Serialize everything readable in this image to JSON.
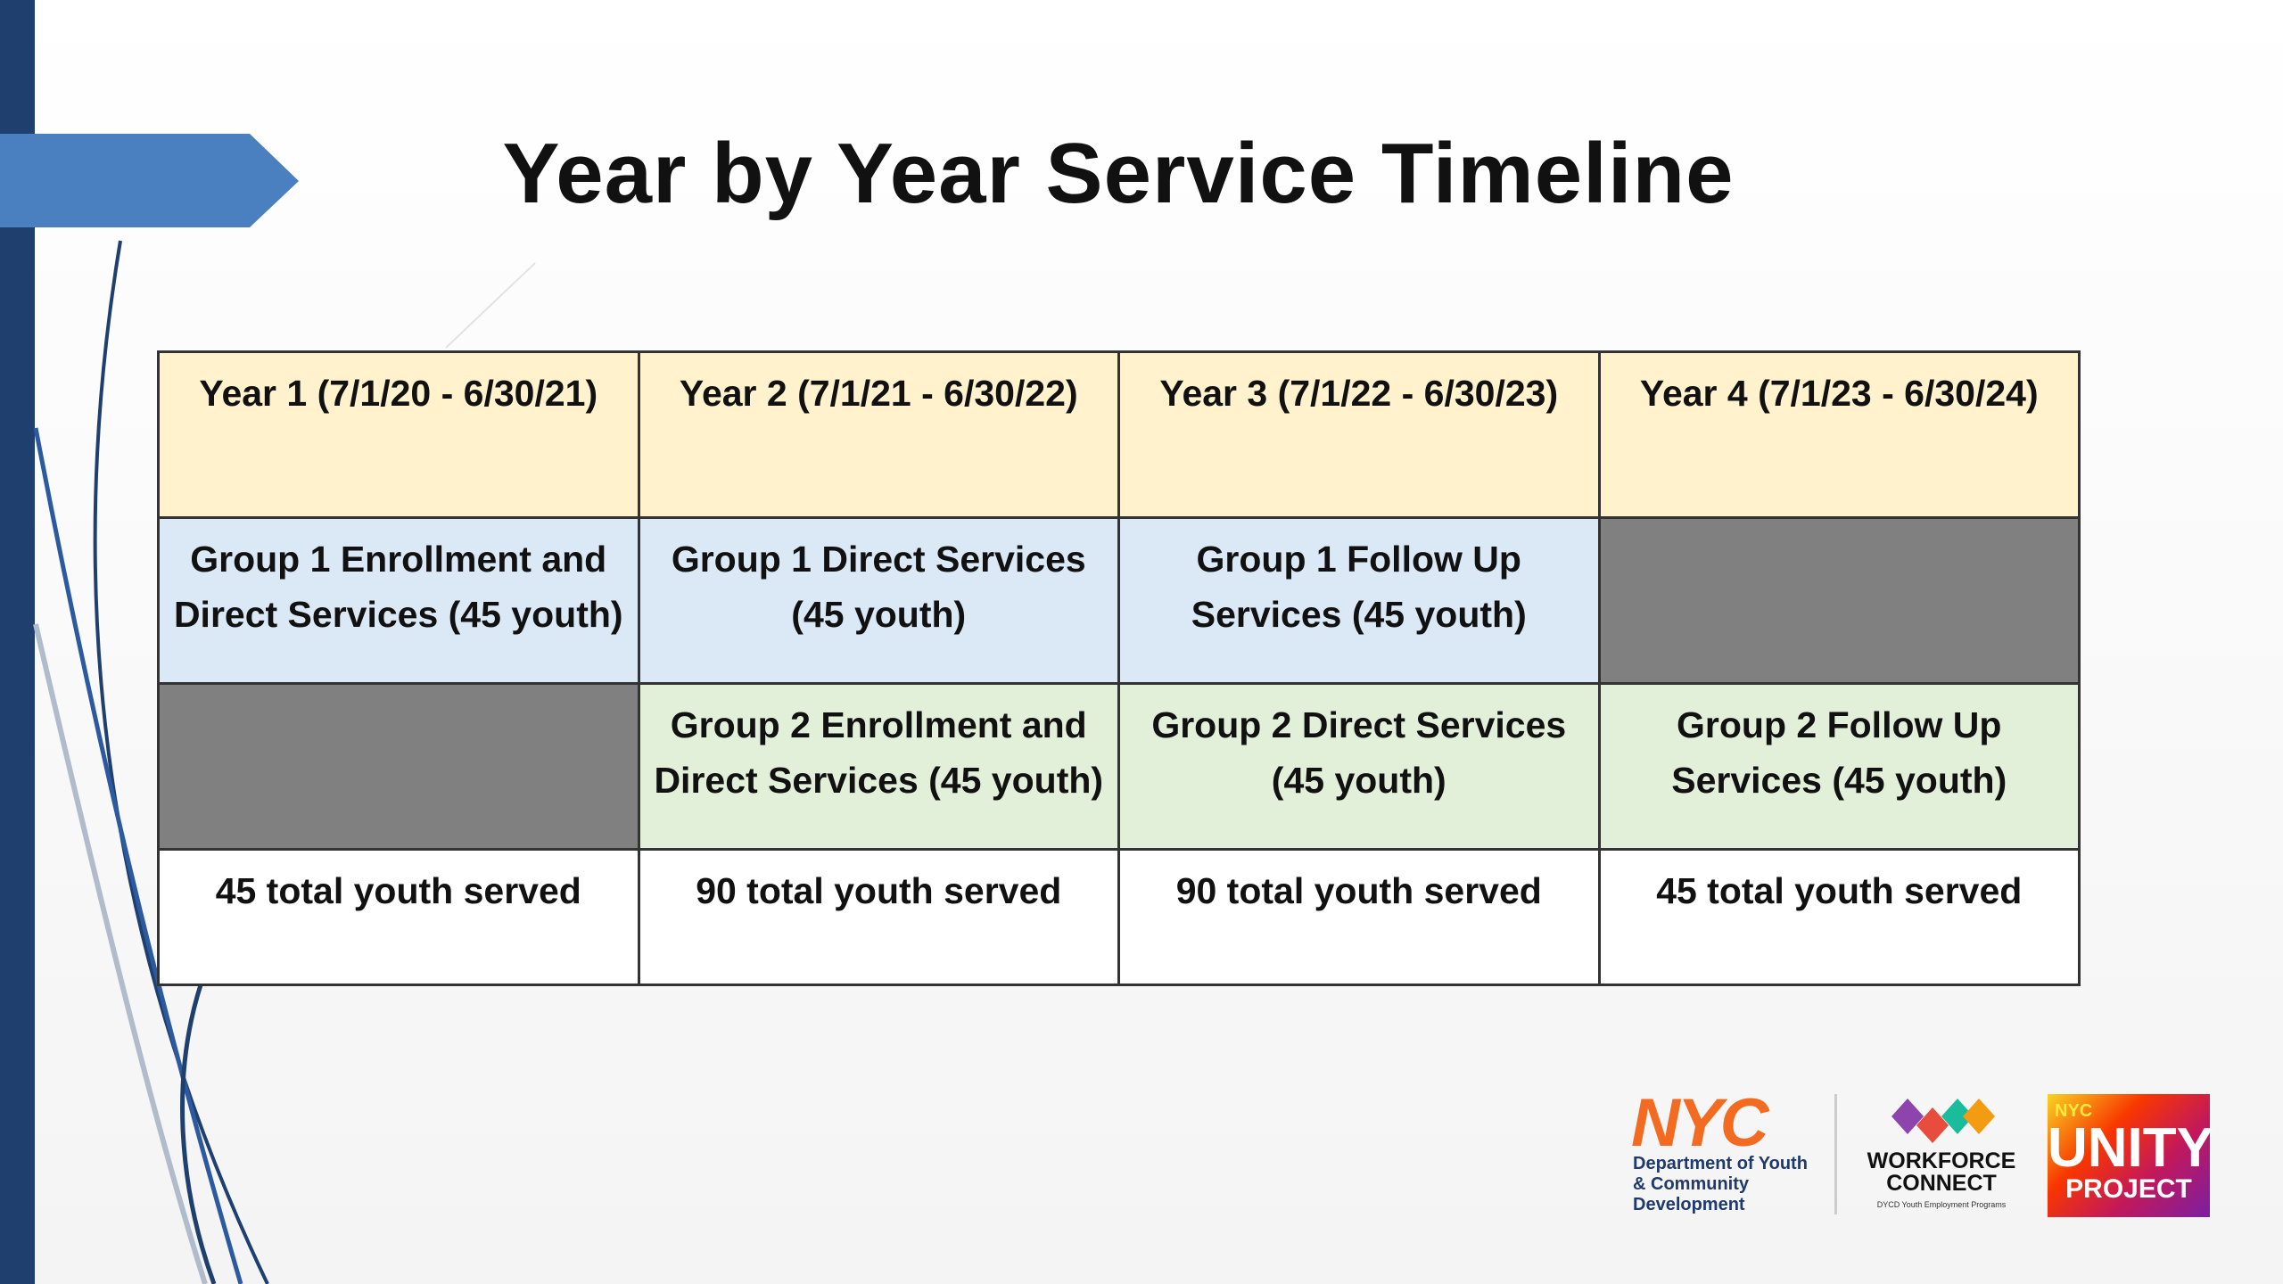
{
  "header": {
    "title": "Year by Year Service Timeline"
  },
  "table": {
    "rows": [
      [
        "Year 1 (7/1/20 - 6/30/21)",
        "Year 2 (7/1/21 - 6/30/22)",
        "Year 3 (7/1/22 - 6/30/23)",
        "Year 4 (7/1/23 - 6/30/24)"
      ],
      [
        "Group 1 Enrollment and Direct Services (45 youth)",
        "Group 1 Direct Services (45 youth)",
        "Group 1 Follow Up Services (45 youth)",
        null
      ],
      [
        null,
        "Group 2 Enrollment and Direct Services (45 youth)",
        "Group 2 Direct Services (45 youth)",
        "Group 2 Follow Up Services (45 youth)"
      ],
      [
        "45 total youth served",
        "90 total youth served",
        "90 total youth served",
        "45 total youth served"
      ]
    ]
  },
  "logos": {
    "nyc": "NYC",
    "dycd": "Department of Youth & Community Development",
    "workforce": "WORKFORCE CONNECT",
    "workforce_sub": "DYCD Youth Employment Programs",
    "unity_nyc": "NYC",
    "unity": "UNITY",
    "unity_project": "PROJECT"
  }
}
